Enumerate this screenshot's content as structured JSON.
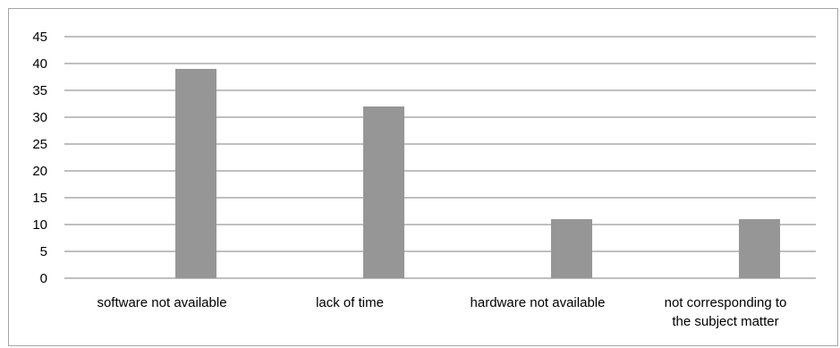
{
  "chart_data": {
    "type": "bar",
    "categories": [
      [
        "software not available"
      ],
      [
        "lack of time"
      ],
      [
        "hardware not available"
      ],
      [
        "not corresponding to",
        "the subject matter"
      ]
    ],
    "values": [
      39,
      32,
      11,
      11
    ],
    "ylim": [
      0,
      45
    ],
    "yticks": [
      0,
      5,
      10,
      15,
      20,
      25,
      30,
      35,
      40,
      45
    ],
    "grid": true,
    "bar_color": "#969696",
    "grid_color": "#7f7f7f"
  }
}
